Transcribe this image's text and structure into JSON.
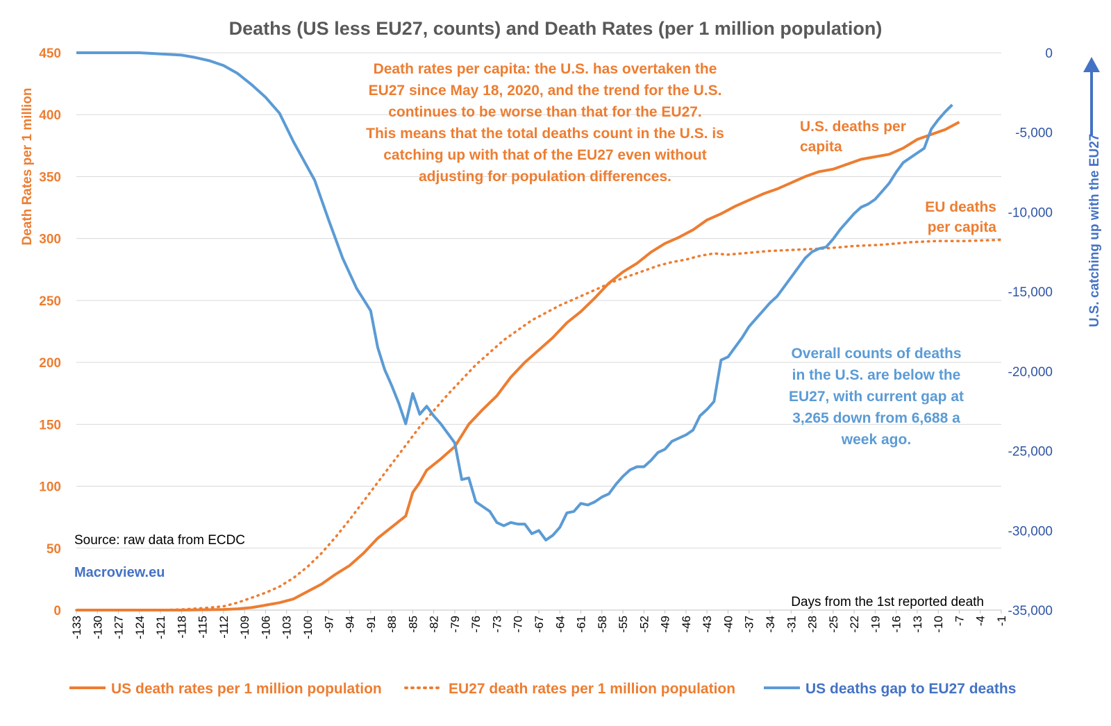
{
  "chart_data": {
    "type": "line",
    "title": "Deaths (US less EU27, counts) and Death Rates (per 1 million population)",
    "xlabel": "Days from the 1st reported death",
    "ylabel_left": "Death Rates per 1 million",
    "ylabel_right": "U.S. catching up with the EU27",
    "y_left_range": [
      0,
      450
    ],
    "y_left_ticks": [
      "0",
      "50",
      "100",
      "150",
      "200",
      "250",
      "300",
      "350",
      "400",
      "450"
    ],
    "y_right_range": [
      -35000,
      0
    ],
    "y_right_ticks": [
      "-35,000",
      "-30,000",
      "-25,000",
      "-20,000",
      "-15,000",
      "-10,000",
      "-5,000",
      "0"
    ],
    "x_range": [
      -133,
      -1
    ],
    "x_ticks": [
      "-133",
      "-130",
      "-127",
      "-124",
      "-121",
      "-118",
      "-115",
      "-112",
      "-109",
      "-106",
      "-103",
      "-100",
      "-97",
      "-94",
      "-91",
      "-88",
      "-85",
      "-82",
      "-79",
      "-76",
      "-73",
      "-70",
      "-67",
      "-64",
      "-61",
      "-58",
      "-55",
      "-52",
      "-49",
      "-46",
      "-43",
      "-40",
      "-37",
      "-34",
      "-31",
      "-28",
      "-25",
      "-22",
      "-19",
      "-16",
      "-13",
      "-10",
      "-7",
      "-4",
      "-1"
    ],
    "grid": true,
    "legend_position": "bottom",
    "series": [
      {
        "name": "US death rates per 1 million population",
        "axis": "left",
        "style": "solid",
        "color": "#ed7d31",
        "points": [
          [
            -133,
            0
          ],
          [
            -118,
            0
          ],
          [
            -112,
            0.5
          ],
          [
            -110,
            1
          ],
          [
            -108,
            2
          ],
          [
            -106,
            4
          ],
          [
            -104,
            6
          ],
          [
            -102,
            9
          ],
          [
            -100,
            15
          ],
          [
            -98,
            21
          ],
          [
            -96,
            29
          ],
          [
            -94,
            36
          ],
          [
            -92,
            46
          ],
          [
            -90,
            58
          ],
          [
            -88,
            67
          ],
          [
            -86,
            76
          ],
          [
            -85,
            95
          ],
          [
            -84,
            103
          ],
          [
            -83,
            113
          ],
          [
            -81,
            122
          ],
          [
            -79,
            132
          ],
          [
            -77,
            150
          ],
          [
            -75,
            162
          ],
          [
            -73,
            173
          ],
          [
            -71,
            188
          ],
          [
            -69,
            200
          ],
          [
            -67,
            210
          ],
          [
            -65,
            220
          ],
          [
            -63,
            232
          ],
          [
            -61,
            241
          ],
          [
            -59,
            252
          ],
          [
            -57,
            264
          ],
          [
            -55,
            273
          ],
          [
            -53,
            280
          ],
          [
            -51,
            289
          ],
          [
            -49,
            296
          ],
          [
            -47,
            301
          ],
          [
            -45,
            307
          ],
          [
            -43,
            315
          ],
          [
            -41,
            320
          ],
          [
            -39,
            326
          ],
          [
            -37,
            331
          ],
          [
            -35,
            336
          ],
          [
            -33,
            340
          ],
          [
            -31,
            345
          ],
          [
            -29,
            350
          ],
          [
            -27,
            354
          ],
          [
            -25,
            356
          ],
          [
            -23,
            360
          ],
          [
            -21,
            364
          ],
          [
            -19,
            366
          ],
          [
            -17,
            368
          ],
          [
            -15,
            373
          ],
          [
            -13,
            380
          ],
          [
            -11,
            384
          ],
          [
            -9,
            388
          ],
          [
            -7,
            394
          ]
        ]
      },
      {
        "name": "EU27 death rates per 1 million population",
        "axis": "left",
        "style": "dotted",
        "color": "#ed7d31",
        "points": [
          [
            -133,
            0
          ],
          [
            -121,
            0
          ],
          [
            -118,
            0.5
          ],
          [
            -115,
            1.5
          ],
          [
            -112,
            3
          ],
          [
            -110,
            6
          ],
          [
            -108,
            10
          ],
          [
            -106,
            14
          ],
          [
            -104,
            19
          ],
          [
            -102,
            26
          ],
          [
            -100,
            35
          ],
          [
            -98,
            46
          ],
          [
            -96,
            59
          ],
          [
            -94,
            73
          ],
          [
            -92,
            88
          ],
          [
            -90,
            103
          ],
          [
            -88,
            118
          ],
          [
            -86,
            133
          ],
          [
            -84,
            148
          ],
          [
            -82,
            161
          ],
          [
            -80,
            174
          ],
          [
            -78,
            186
          ],
          [
            -76,
            198
          ],
          [
            -74,
            208
          ],
          [
            -72,
            218
          ],
          [
            -70,
            226
          ],
          [
            -68,
            234
          ],
          [
            -66,
            240
          ],
          [
            -64,
            246
          ],
          [
            -62,
            251
          ],
          [
            -60,
            256
          ],
          [
            -58,
            261
          ],
          [
            -56,
            266
          ],
          [
            -54,
            270
          ],
          [
            -52,
            274
          ],
          [
            -50,
            278
          ],
          [
            -48,
            281
          ],
          [
            -46,
            283
          ],
          [
            -44,
            286
          ],
          [
            -42,
            288
          ],
          [
            -40,
            287
          ],
          [
            -38,
            288
          ],
          [
            -34,
            290
          ],
          [
            -30,
            291
          ],
          [
            -26,
            292
          ],
          [
            -22,
            294
          ],
          [
            -18,
            295
          ],
          [
            -16,
            296
          ],
          [
            -14,
            297
          ],
          [
            -10,
            298
          ],
          [
            -6,
            298
          ],
          [
            -1,
            299
          ]
        ]
      },
      {
        "name": "US deaths gap to EU27 deaths",
        "axis": "right",
        "style": "solid",
        "color": "#5b9bd5",
        "points": [
          [
            -133,
            0
          ],
          [
            -124,
            0
          ],
          [
            -120,
            -100
          ],
          [
            -118,
            -150
          ],
          [
            -116,
            -300
          ],
          [
            -114,
            -500
          ],
          [
            -112,
            -800
          ],
          [
            -110,
            -1300
          ],
          [
            -108,
            -2000
          ],
          [
            -106,
            -2800
          ],
          [
            -104,
            -3800
          ],
          [
            -102,
            -5600
          ],
          [
            -100,
            -7200
          ],
          [
            -99,
            -8000
          ],
          [
            -97,
            -10500
          ],
          [
            -95,
            -12900
          ],
          [
            -93,
            -14800
          ],
          [
            -92,
            -15500
          ],
          [
            -91,
            -16200
          ],
          [
            -90,
            -18500
          ],
          [
            -89,
            -19900
          ],
          [
            -88,
            -20900
          ],
          [
            -87,
            -22000
          ],
          [
            -86,
            -23300
          ],
          [
            -85,
            -21400
          ],
          [
            -84,
            -22700
          ],
          [
            -83,
            -22200
          ],
          [
            -82,
            -22800
          ],
          [
            -81,
            -23300
          ],
          [
            -80,
            -23900
          ],
          [
            -79,
            -24500
          ],
          [
            -78,
            -26800
          ],
          [
            -77,
            -26700
          ],
          [
            -76,
            -28200
          ],
          [
            -75,
            -28500
          ],
          [
            -74,
            -28800
          ],
          [
            -73,
            -29500
          ],
          [
            -72,
            -29700
          ],
          [
            -71,
            -29500
          ],
          [
            -70,
            -29600
          ],
          [
            -69,
            -29600
          ],
          [
            -68,
            -30200
          ],
          [
            -67,
            -30000
          ],
          [
            -66,
            -30600
          ],
          [
            -65,
            -30300
          ],
          [
            -64,
            -29800
          ],
          [
            -63,
            -28900
          ],
          [
            -62,
            -28800
          ],
          [
            -61,
            -28300
          ],
          [
            -60,
            -28400
          ],
          [
            -59,
            -28200
          ],
          [
            -58,
            -27900
          ],
          [
            -57,
            -27700
          ],
          [
            -56,
            -27100
          ],
          [
            -55,
            -26600
          ],
          [
            -54,
            -26200
          ],
          [
            -53,
            -26000
          ],
          [
            -52,
            -26000
          ],
          [
            -51,
            -25600
          ],
          [
            -50,
            -25100
          ],
          [
            -49,
            -24900
          ],
          [
            -48,
            -24400
          ],
          [
            -47,
            -24200
          ],
          [
            -46,
            -24000
          ],
          [
            -45,
            -23700
          ],
          [
            -44,
            -22800
          ],
          [
            -43,
            -22400
          ],
          [
            -42,
            -21900
          ],
          [
            -41,
            -19300
          ],
          [
            -40,
            -19100
          ],
          [
            -39,
            -18500
          ],
          [
            -38,
            -17900
          ],
          [
            -37,
            -17200
          ],
          [
            -36,
            -16700
          ],
          [
            -35,
            -16200
          ],
          [
            -34,
            -15700
          ],
          [
            -33,
            -15300
          ],
          [
            -32,
            -14700
          ],
          [
            -31,
            -14100
          ],
          [
            -30,
            -13500
          ],
          [
            -29,
            -12900
          ],
          [
            -28,
            -12500
          ],
          [
            -27,
            -12300
          ],
          [
            -26,
            -12200
          ],
          [
            -25,
            -11700
          ],
          [
            -24,
            -11100
          ],
          [
            -23,
            -10600
          ],
          [
            -22,
            -10100
          ],
          [
            -21,
            -9700
          ],
          [
            -20,
            -9500
          ],
          [
            -19,
            -9200
          ],
          [
            -18,
            -8700
          ],
          [
            -17,
            -8200
          ],
          [
            -16,
            -7500
          ],
          [
            -15,
            -6900
          ],
          [
            -14,
            -6600
          ],
          [
            -13,
            -6300
          ],
          [
            -12,
            -6000
          ],
          [
            -11,
            -4800
          ],
          [
            -10,
            -4200
          ],
          [
            -9,
            -3700
          ],
          [
            -8,
            -3265
          ]
        ]
      }
    ],
    "annotations": {
      "headline": [
        "Death rates per capita: the U.S. has overtaken the",
        "EU27 since May 18, 2020, and the trend for the U.S.",
        "continues to be worse than that for the EU27.",
        "",
        "This means that the total deaths count in the U.S. is",
        "catching up with that of the EU27 even without",
        "adjusting for population differences."
      ],
      "us_label": [
        "U.S. deaths per",
        "capita"
      ],
      "eu_label": [
        "EU deaths",
        "per capita"
      ],
      "counts": [
        "Overall counts of deaths",
        "in the U.S. are below the",
        "EU27, with current gap at",
        "3,265 down from 6,688 a",
        "week ago."
      ],
      "source": "Source: raw data from ECDC",
      "site": "Macroview.eu"
    },
    "legend": [
      "US death rates per 1 million population",
      "EU27 death rates per 1 million population",
      "US deaths gap to EU27 deaths"
    ]
  },
  "colors": {
    "orange": "#ed7d31",
    "blue": "#5b9bd5",
    "dark_blue": "#4472c4",
    "grid": "#d9d9d9"
  }
}
